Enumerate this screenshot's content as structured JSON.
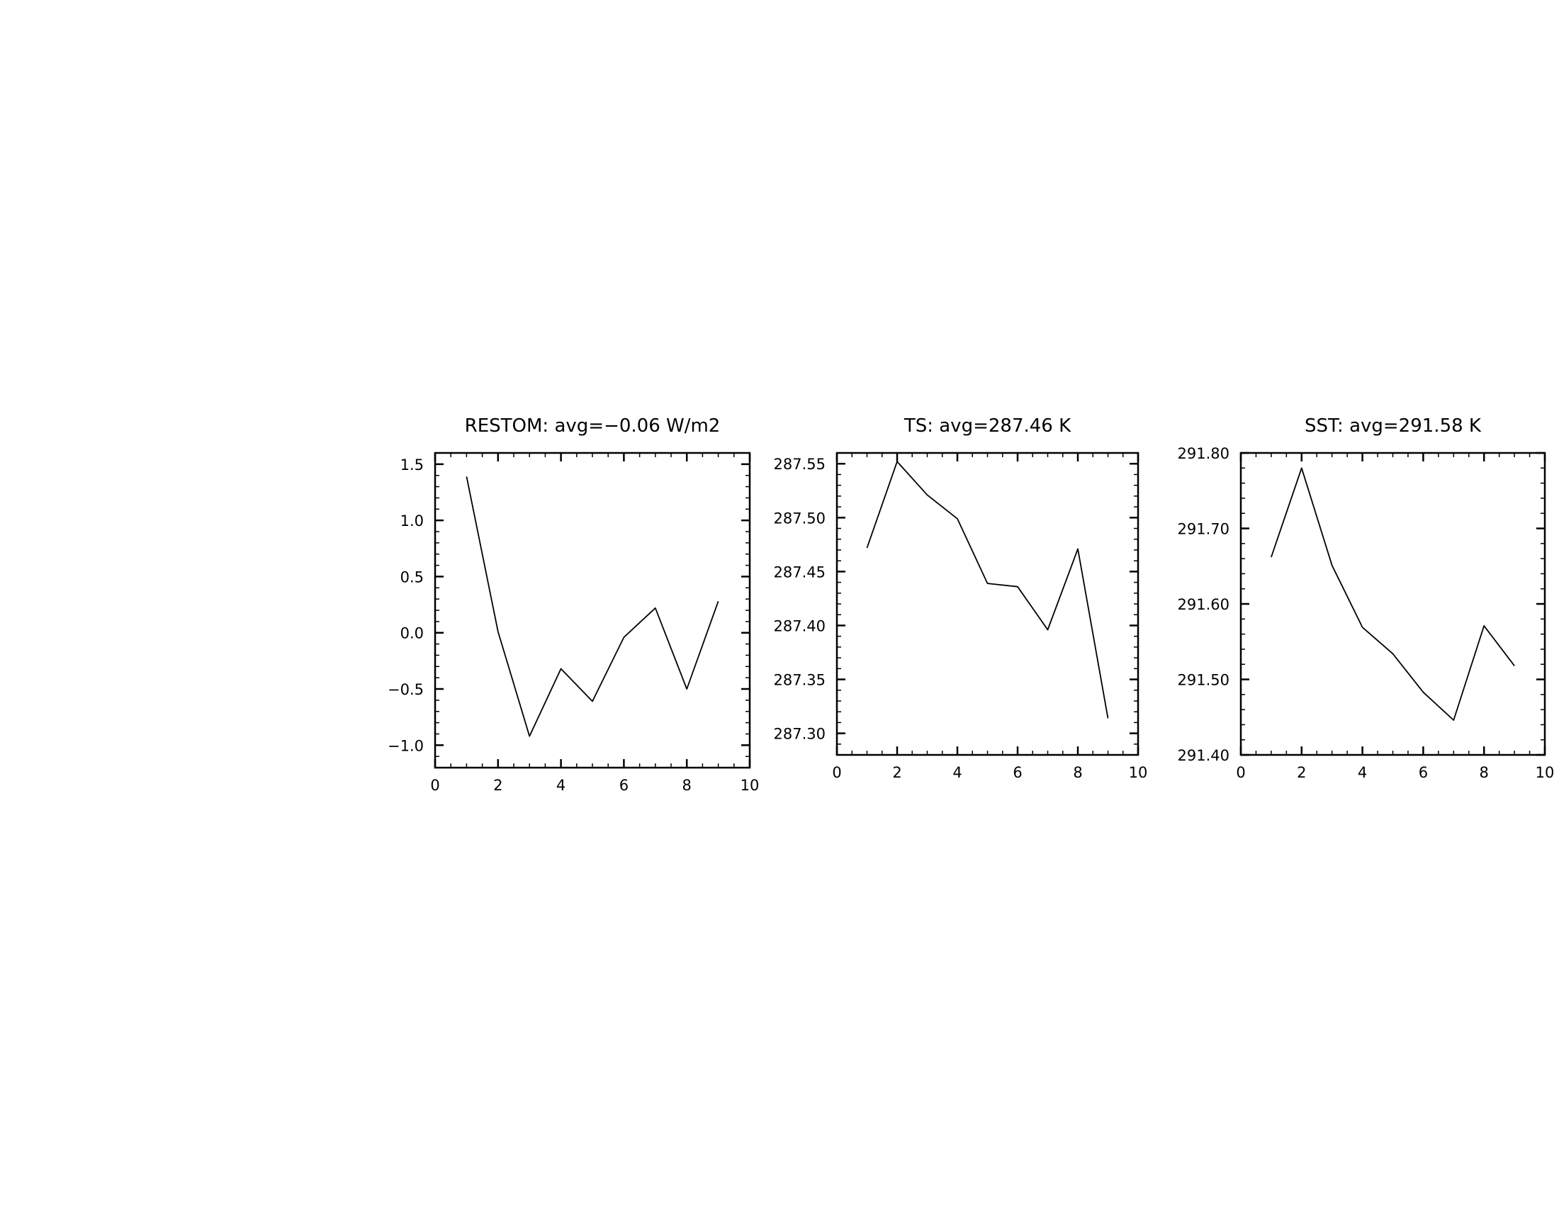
{
  "chart_data": [
    {
      "type": "line",
      "title": "RESTOM: avg=−0.06 W/m2",
      "xlabel": "",
      "ylabel": "",
      "xlim": [
        0,
        10
      ],
      "ylim": [
        -1.2,
        1.6
      ],
      "x_ticks": [
        0,
        2,
        4,
        6,
        8,
        10
      ],
      "x_tick_labels": [
        "0",
        "2",
        "4",
        "6",
        "8",
        "10"
      ],
      "x_minor_step": 0.5,
      "y_ticks": [
        -1.0,
        -0.5,
        0.0,
        0.5,
        1.0,
        1.5
      ],
      "y_tick_labels": [
        "−1.0",
        "−0.5",
        "0.0",
        "0.5",
        "1.0",
        "1.5"
      ],
      "y_minor_step": 0.1,
      "grid": false,
      "series": [
        {
          "x": [
            1,
            2,
            3,
            4,
            5,
            6,
            7,
            8,
            9
          ],
          "values": [
            1.39,
            0.01,
            -0.92,
            -0.32,
            -0.61,
            -0.04,
            0.22,
            -0.5,
            0.28
          ]
        }
      ]
    },
    {
      "type": "line",
      "title": "TS: avg=287.46 K",
      "xlabel": "",
      "ylabel": "",
      "xlim": [
        0,
        10
      ],
      "ylim": [
        287.28,
        287.56
      ],
      "x_ticks": [
        0,
        2,
        4,
        6,
        8,
        10
      ],
      "x_tick_labels": [
        "0",
        "2",
        "4",
        "6",
        "8",
        "10"
      ],
      "x_minor_step": 0.5,
      "y_ticks": [
        287.3,
        287.35,
        287.4,
        287.45,
        287.5,
        287.55
      ],
      "y_tick_labels": [
        "287.30",
        "287.35",
        "287.40",
        "287.45",
        "287.50",
        "287.55"
      ],
      "y_minor_step": 0.01,
      "grid": false,
      "series": [
        {
          "x": [
            1,
            2,
            3,
            4,
            5,
            6,
            7,
            8,
            9
          ],
          "values": [
            287.472,
            287.552,
            287.521,
            287.499,
            287.439,
            287.436,
            287.396,
            287.471,
            287.314
          ]
        }
      ]
    },
    {
      "type": "line",
      "title": "SST: avg=291.58 K",
      "xlabel": "",
      "ylabel": "",
      "xlim": [
        0,
        10
      ],
      "ylim": [
        291.4,
        291.8
      ],
      "x_ticks": [
        0,
        2,
        4,
        6,
        8,
        10
      ],
      "x_tick_labels": [
        "0",
        "2",
        "4",
        "6",
        "8",
        "10"
      ],
      "x_minor_step": 0.5,
      "y_ticks": [
        291.4,
        291.5,
        291.6,
        291.7,
        291.8
      ],
      "y_tick_labels": [
        "291.40",
        "291.50",
        "291.60",
        "291.70",
        "291.80"
      ],
      "y_minor_step": 0.02,
      "grid": false,
      "series": [
        {
          "x": [
            1,
            2,
            3,
            4,
            5,
            6,
            7,
            8,
            9
          ],
          "values": [
            291.662,
            291.78,
            291.651,
            291.569,
            291.534,
            291.483,
            291.446,
            291.571,
            291.518
          ]
        }
      ]
    }
  ]
}
